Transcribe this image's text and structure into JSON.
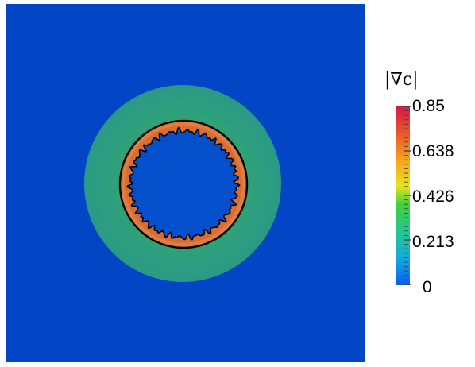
{
  "colorbar": {
    "title": "|∇c|",
    "ticks": [
      "0.85",
      "0.638",
      "0.426",
      "0.213",
      "0"
    ],
    "min": 0,
    "max": 0.85,
    "colors": [
      "#0a5cf0",
      "#12a6e0",
      "#1fc79a",
      "#3ed23a",
      "#e8e41a",
      "#f3a31d",
      "#e8552a",
      "#d4174a"
    ]
  },
  "field": {
    "background_color": "#0346c5",
    "halo_color": "#2a9a86",
    "inner_color": "#0450cc",
    "ring_color": "#e27d3c",
    "contour_color": "#000000"
  }
}
